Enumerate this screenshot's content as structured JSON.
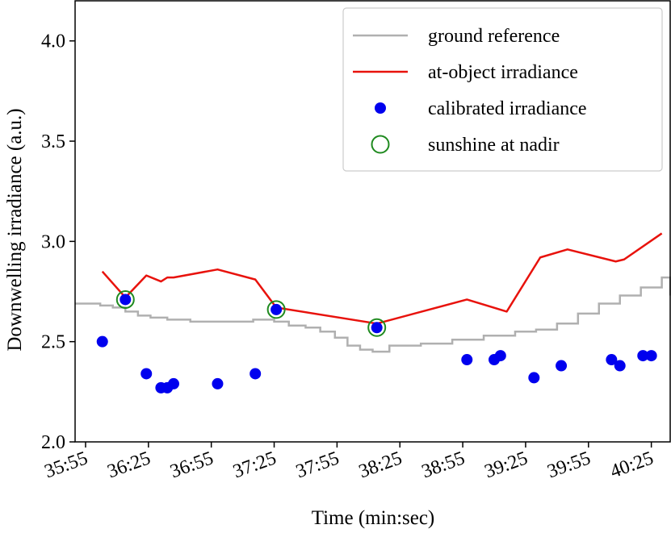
{
  "chart_data": {
    "type": "line",
    "title": "",
    "xlabel": "Time (min:sec)",
    "ylabel": "Downwelling irradiance (a.u.)",
    "xlim": [
      "35:50",
      "40:34"
    ],
    "ylim": [
      2.0,
      4.2
    ],
    "x_ticks": [
      "35:55",
      "36:25",
      "36:55",
      "37:25",
      "37:55",
      "38:25",
      "38:55",
      "39:25",
      "39:55",
      "40:25"
    ],
    "y_ticks": [
      "2.0",
      "2.5",
      "3.0",
      "3.5",
      "4.0"
    ],
    "grid": false,
    "legend": {
      "position": "top-right",
      "entries": [
        {
          "label": "ground reference",
          "marker": "line",
          "color": "#b0b0b0"
        },
        {
          "label": "at-object irradiance",
          "marker": "line",
          "color": "#e8120c"
        },
        {
          "label": "calibrated irradiance",
          "marker": "filled-circle",
          "color": "#0000ee"
        },
        {
          "label": "sunshine at nadir",
          "marker": "open-circle",
          "color": "#1f8a1f"
        }
      ]
    },
    "series": [
      {
        "name": "ground reference",
        "style": "step",
        "color": "#b0b0b0",
        "points": [
          [
            "35:50",
            2.69
          ],
          [
            "36:02",
            2.68
          ],
          [
            "36:08",
            2.67
          ],
          [
            "36:14",
            2.65
          ],
          [
            "36:20",
            2.63
          ],
          [
            "36:26",
            2.62
          ],
          [
            "36:34",
            2.61
          ],
          [
            "36:45",
            2.6
          ],
          [
            "37:00",
            2.6
          ],
          [
            "37:15",
            2.61
          ],
          [
            "37:25",
            2.6
          ],
          [
            "37:32",
            2.58
          ],
          [
            "37:40",
            2.57
          ],
          [
            "37:47",
            2.55
          ],
          [
            "37:54",
            2.52
          ],
          [
            "38:00",
            2.48
          ],
          [
            "38:06",
            2.46
          ],
          [
            "38:12",
            2.45
          ],
          [
            "38:20",
            2.48
          ],
          [
            "38:35",
            2.49
          ],
          [
            "38:50",
            2.51
          ],
          [
            "39:05",
            2.53
          ],
          [
            "39:20",
            2.55
          ],
          [
            "39:30",
            2.56
          ],
          [
            "39:40",
            2.59
          ],
          [
            "39:50",
            2.64
          ],
          [
            "40:00",
            2.69
          ],
          [
            "40:10",
            2.73
          ],
          [
            "40:20",
            2.77
          ],
          [
            "40:30",
            2.82
          ],
          [
            "40:34",
            2.73
          ]
        ]
      },
      {
        "name": "at-object irradiance",
        "style": "line",
        "color": "#e8120c",
        "points": [
          [
            "36:03",
            2.85
          ],
          [
            "36:14",
            2.72
          ],
          [
            "36:24",
            2.83
          ],
          [
            "36:31",
            2.8
          ],
          [
            "36:34",
            2.82
          ],
          [
            "36:37",
            2.82
          ],
          [
            "36:58",
            2.86
          ],
          [
            "37:16",
            2.81
          ],
          [
            "37:26",
            2.67
          ],
          [
            "38:14",
            2.59
          ],
          [
            "38:57",
            2.71
          ],
          [
            "39:16",
            2.65
          ],
          [
            "39:32",
            2.92
          ],
          [
            "39:45",
            2.96
          ],
          [
            "40:08",
            2.9
          ],
          [
            "40:12",
            2.91
          ],
          [
            "40:30",
            3.04
          ]
        ]
      },
      {
        "name": "calibrated irradiance",
        "style": "scatter",
        "color": "#0000ee",
        "points": [
          [
            "36:03",
            2.5
          ],
          [
            "36:14",
            2.71
          ],
          [
            "36:24",
            2.34
          ],
          [
            "36:31",
            2.27
          ],
          [
            "36:34",
            2.27
          ],
          [
            "36:37",
            2.29
          ],
          [
            "36:58",
            2.29
          ],
          [
            "37:16",
            2.34
          ],
          [
            "37:26",
            2.66
          ],
          [
            "38:14",
            2.57
          ],
          [
            "38:57",
            2.41
          ],
          [
            "39:10",
            2.41
          ],
          [
            "39:13",
            2.43
          ],
          [
            "39:29",
            2.32
          ],
          [
            "39:42",
            2.38
          ],
          [
            "40:06",
            2.41
          ],
          [
            "40:10",
            2.38
          ],
          [
            "40:21",
            2.43
          ],
          [
            "40:25",
            2.43
          ]
        ]
      },
      {
        "name": "sunshine at nadir",
        "style": "scatter-open",
        "color": "#1f8a1f",
        "points": [
          [
            "36:14",
            2.71
          ],
          [
            "37:26",
            2.66
          ],
          [
            "38:14",
            2.57
          ]
        ]
      }
    ]
  }
}
